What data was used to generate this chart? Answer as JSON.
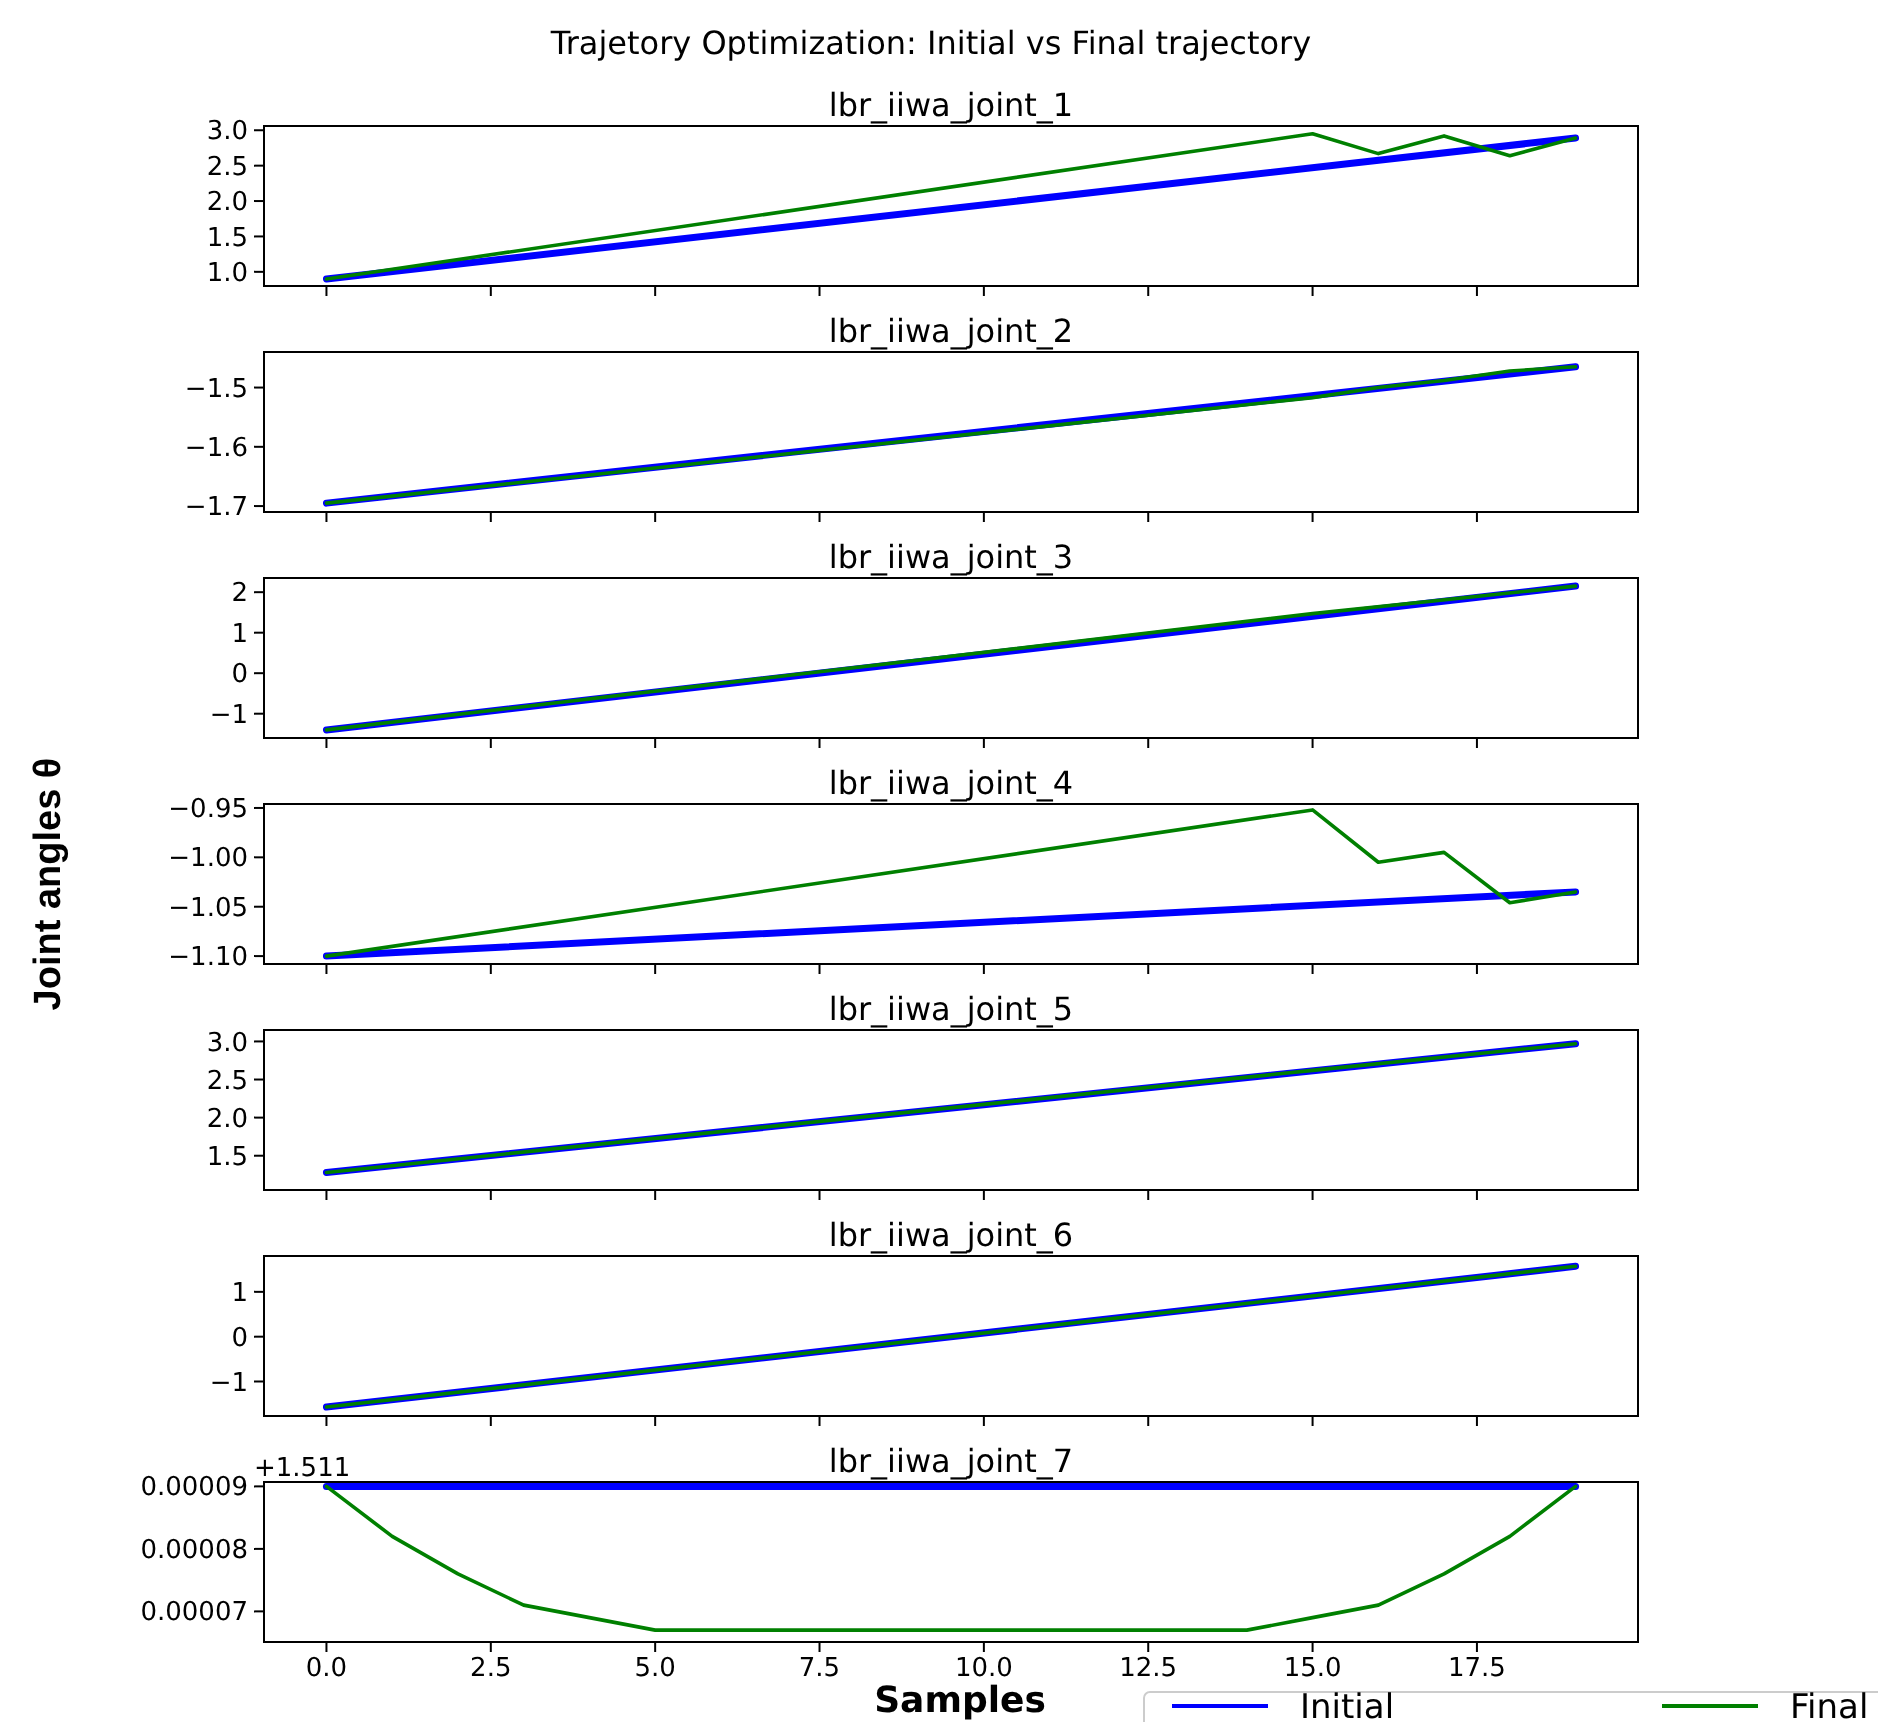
{
  "chart_data": [
    {
      "type": "line",
      "title": "lbr_iiwa_joint_1",
      "annotations": [
        "Trajetory Optimization: Initial vs Final trajectory"
      ],
      "xlim": [
        -0.95,
        19.95
      ],
      "xticks": [
        {
          "value": 0,
          "label": null
        },
        {
          "value": 2.5,
          "label": null
        },
        {
          "value": 5,
          "label": null
        },
        {
          "value": 7.5,
          "label": null
        },
        {
          "value": 10,
          "label": null
        },
        {
          "value": 12.5,
          "label": null
        },
        {
          "value": 15,
          "label": null
        },
        {
          "value": 17.5,
          "label": null
        }
      ],
      "tick_labels": "y",
      "ylim": [
        0.8,
        3.06
      ],
      "yticks": [
        {
          "value": 1,
          "label": "1.0"
        },
        {
          "value": 1.5,
          "label": "1.5"
        },
        {
          "value": 2,
          "label": "2.0"
        },
        {
          "value": 2.5,
          "label": "2.5"
        },
        {
          "value": 3,
          "label": "3.0"
        }
      ],
      "series": [
        {
          "color": "#0000ff",
          "x": [
            0,
            19
          ],
          "values": [
            0.9,
            2.89
          ]
        },
        {
          "color": "#008000",
          "x": [
            0,
            15,
            16,
            17,
            18,
            19
          ],
          "values": [
            0.9,
            2.95,
            2.67,
            2.92,
            2.64,
            2.89
          ]
        }
      ]
    },
    {
      "type": "line",
      "title": "lbr_iiwa_joint_2",
      "xlim": [
        -0.95,
        19.95
      ],
      "xticks": [
        {
          "value": 0,
          "label": null
        },
        {
          "value": 2.5,
          "label": null
        },
        {
          "value": 5,
          "label": null
        },
        {
          "value": 7.5,
          "label": null
        },
        {
          "value": 10,
          "label": null
        },
        {
          "value": 12.5,
          "label": null
        },
        {
          "value": 15,
          "label": null
        },
        {
          "value": 17.5,
          "label": null
        }
      ],
      "tick_labels": "y",
      "ylim": [
        -1.71,
        -1.44
      ],
      "yticks": [
        {
          "value": -1.7,
          "label": "−1.7"
        },
        {
          "value": -1.6,
          "label": "−1.6"
        },
        {
          "value": -1.5,
          "label": "−1.5"
        }
      ],
      "series": [
        {
          "color": "#0000ff",
          "x": [
            0,
            19
          ],
          "values": [
            -1.695,
            -1.465
          ]
        },
        {
          "color": "#008000",
          "x": [
            0,
            15,
            16,
            17,
            18,
            19
          ],
          "values": [
            -1.695,
            -1.517,
            -1.5,
            -1.488,
            -1.472,
            -1.465
          ]
        }
      ]
    },
    {
      "type": "line",
      "title": "lbr_iiwa_joint_3",
      "xlim": [
        -0.95,
        19.95
      ],
      "xticks": [
        {
          "value": 0,
          "label": null
        },
        {
          "value": 2.5,
          "label": null
        },
        {
          "value": 5,
          "label": null
        },
        {
          "value": 7.5,
          "label": null
        },
        {
          "value": 10,
          "label": null
        },
        {
          "value": 12.5,
          "label": null
        },
        {
          "value": 15,
          "label": null
        },
        {
          "value": 17.5,
          "label": null
        }
      ],
      "tick_labels": "y",
      "ylim": [
        -1.6,
        2.35
      ],
      "yticks": [
        {
          "value": -1,
          "label": "−1"
        },
        0,
        1,
        2
      ],
      "series": [
        {
          "color": "#0000ff",
          "x": [
            0,
            19
          ],
          "values": [
            -1.4,
            2.15
          ]
        },
        {
          "color": "#008000",
          "x": [
            0,
            15,
            19
          ],
          "values": [
            -1.4,
            1.47,
            2.15
          ]
        }
      ]
    },
    {
      "type": "line",
      "title": "lbr_iiwa_joint_4",
      "ylabel": "Joint angles θ",
      "xlim": [
        -0.95,
        19.95
      ],
      "xticks": [
        {
          "value": 0,
          "label": null
        },
        {
          "value": 2.5,
          "label": null
        },
        {
          "value": 5,
          "label": null
        },
        {
          "value": 7.5,
          "label": null
        },
        {
          "value": 10,
          "label": null
        },
        {
          "value": 12.5,
          "label": null
        },
        {
          "value": 15,
          "label": null
        },
        {
          "value": 17.5,
          "label": null
        }
      ],
      "tick_labels": "y",
      "ylim": [
        -1.108,
        -0.946
      ],
      "yticks": [
        {
          "value": -1.1,
          "label": "−1.10"
        },
        {
          "value": -1.05,
          "label": "−1.05"
        },
        {
          "value": -1.0,
          "label": "−1.00"
        },
        {
          "value": -0.95,
          "label": "−0.95"
        }
      ],
      "series": [
        {
          "color": "#0000ff",
          "x": [
            0,
            19
          ],
          "values": [
            -1.1,
            -1.035
          ]
        },
        {
          "color": "#008000",
          "x": [
            0,
            15,
            16,
            17,
            18,
            19
          ],
          "values": [
            -1.1,
            -0.952,
            -1.005,
            -0.995,
            -1.046,
            -1.035
          ]
        }
      ]
    },
    {
      "type": "line",
      "title": "lbr_iiwa_joint_5",
      "xlim": [
        -0.95,
        19.95
      ],
      "xticks": [
        {
          "value": 0,
          "label": null
        },
        {
          "value": 2.5,
          "label": null
        },
        {
          "value": 5,
          "label": null
        },
        {
          "value": 7.5,
          "label": null
        },
        {
          "value": 10,
          "label": null
        },
        {
          "value": 12.5,
          "label": null
        },
        {
          "value": 15,
          "label": null
        },
        {
          "value": 17.5,
          "label": null
        }
      ],
      "tick_labels": "y",
      "ylim": [
        1.05,
        3.15
      ],
      "yticks": [
        {
          "value": 1.5,
          "label": "1.5"
        },
        {
          "value": 2,
          "label": "2.0"
        },
        {
          "value": 2.5,
          "label": "2.5"
        },
        {
          "value": 3,
          "label": "3.0"
        }
      ],
      "series": [
        {
          "color": "#0000ff",
          "x": [
            0,
            19
          ],
          "values": [
            1.28,
            2.97
          ]
        },
        {
          "color": "#008000",
          "x": [
            0,
            15,
            19
          ],
          "values": [
            1.28,
            2.62,
            2.97
          ]
        }
      ]
    },
    {
      "type": "line",
      "title": "lbr_iiwa_joint_6",
      "xlim": [
        -0.95,
        19.95
      ],
      "xticks": [
        {
          "value": 0,
          "label": null
        },
        {
          "value": 2.5,
          "label": null
        },
        {
          "value": 5,
          "label": null
        },
        {
          "value": 7.5,
          "label": null
        },
        {
          "value": 10,
          "label": null
        },
        {
          "value": 12.5,
          "label": null
        },
        {
          "value": 15,
          "label": null
        },
        {
          "value": 17.5,
          "label": null
        }
      ],
      "tick_labels": "y",
      "ylim": [
        -1.77,
        1.8
      ],
      "yticks": [
        {
          "value": -1,
          "label": "−1"
        },
        0,
        1
      ],
      "series": [
        {
          "color": "#0000ff",
          "x": [
            0,
            19
          ],
          "values": [
            -1.57,
            1.57
          ]
        },
        {
          "color": "#008000",
          "x": [
            0,
            19
          ],
          "values": [
            -1.57,
            1.57
          ]
        }
      ]
    },
    {
      "type": "line",
      "title": "lbr_iiwa_joint_7",
      "xlabel": "Samples",
      "annotations": [
        "+1.511"
      ],
      "legend": "bottom right",
      "xlim": [
        -0.95,
        19.95
      ],
      "xticks": [
        {
          "value": 0,
          "label": "0.0"
        },
        {
          "value": 2.5,
          "label": "2.5"
        },
        {
          "value": 5,
          "label": "5.0"
        },
        {
          "value": 7.5,
          "label": "7.5"
        },
        {
          "value": 10,
          "label": "10.0"
        },
        {
          "value": 12.5,
          "label": "12.5"
        },
        {
          "value": 15,
          "label": "15.0"
        },
        {
          "value": 17.5,
          "label": "17.5"
        }
      ],
      "ylim": [
        6.51e-05,
        9.07e-05
      ],
      "yticks": [
        {
          "value": 7e-05,
          "label": "0.00007"
        },
        {
          "value": 8e-05,
          "label": "0.00008"
        },
        {
          "value": 9e-05,
          "label": "0.00009"
        }
      ],
      "series": [
        {
          "name": "Initial",
          "color": "#0000ff",
          "x": [
            0,
            19
          ],
          "values": [
            9e-05,
            9e-05
          ]
        },
        {
          "name": "Final",
          "color": "#008000",
          "x": [
            0,
            1,
            2,
            3,
            4,
            5,
            6,
            7,
            8,
            9,
            10,
            11,
            12,
            13,
            14,
            15,
            16,
            17,
            18,
            19
          ],
          "values": [
            9e-05,
            8.2e-05,
            7.6e-05,
            7.1e-05,
            6.9e-05,
            6.7e-05,
            6.7e-05,
            6.7e-05,
            6.7e-05,
            6.7e-05,
            6.7e-05,
            6.7e-05,
            6.7e-05,
            6.7e-05,
            6.7e-05,
            6.9e-05,
            7.1e-05,
            7.6e-05,
            8.2e-05,
            9e-05
          ]
        }
      ]
    }
  ]
}
